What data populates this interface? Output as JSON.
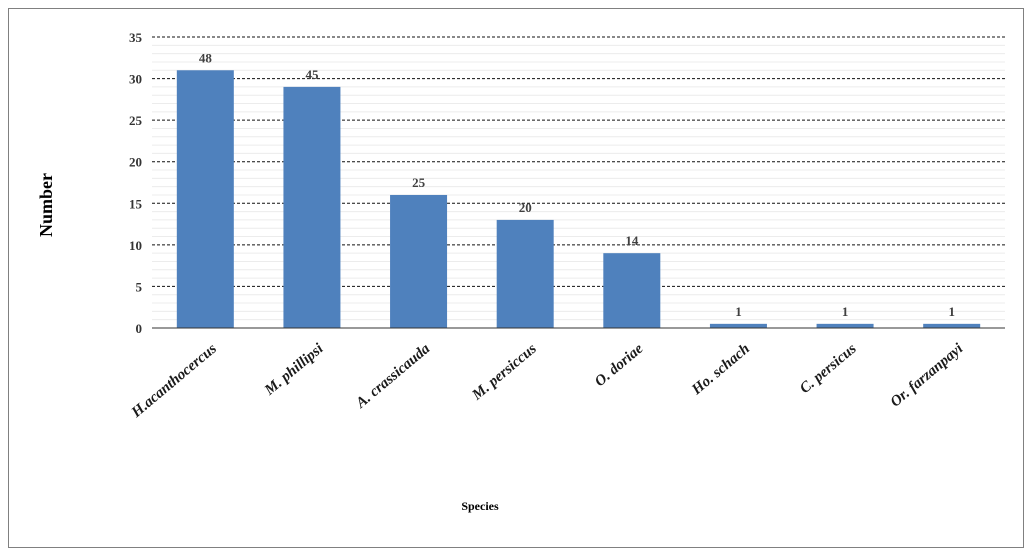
{
  "chart_data": {
    "type": "bar",
    "categories": [
      "H.acanthocercus",
      "M. phillipsi",
      "A. crassicauda",
      "M. persiccus",
      "O. doriae",
      "Ho. schach",
      "C. persicus",
      "Or. farzanpayi"
    ],
    "values": [
      31,
      29,
      16,
      13,
      9,
      0.5,
      0.5,
      0.5
    ],
    "data_labels": [
      "48",
      "45",
      "25",
      "20",
      "14",
      "1",
      "1",
      "1"
    ],
    "ylim": [
      0,
      35
    ],
    "yticks": [
      0,
      5,
      10,
      15,
      20,
      25,
      30,
      35
    ],
    "ylabel": "Number",
    "xlabel": "Species",
    "bar_color": "#4f81bd",
    "grid": true,
    "legend": "none"
  }
}
